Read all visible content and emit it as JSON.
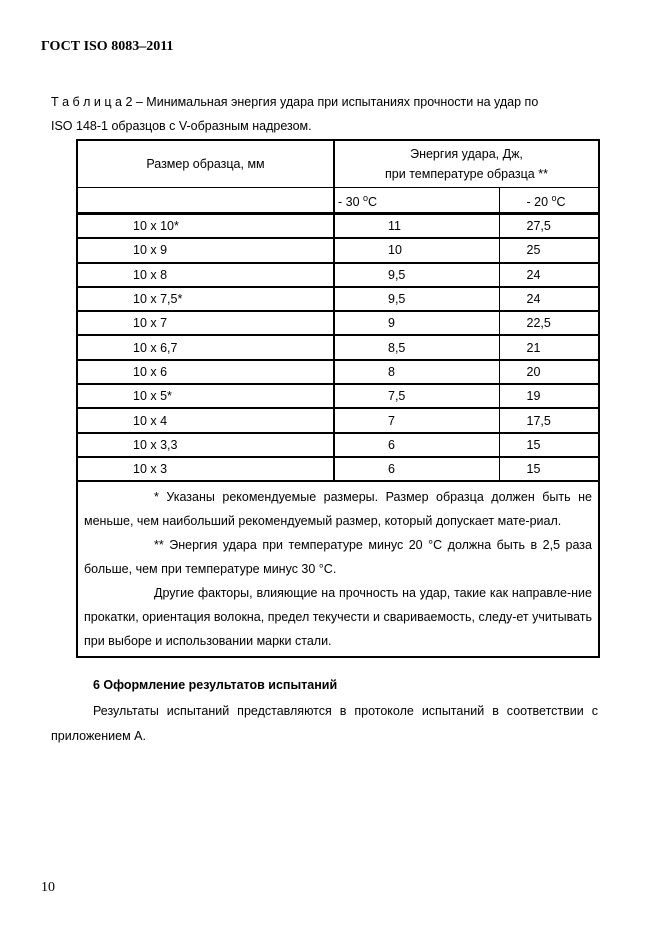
{
  "header": {
    "standard": "ГОСТ ISO 8083–2011"
  },
  "table": {
    "caption_line1": "Т а б л и ц а  2 – Минимальная энергия удара при испытаниях прочности на удар по",
    "caption_line2": "ISO 148-1 образцов с V-образным надрезом.",
    "col_size": "Размер образца, мм",
    "col_energy_line1": "Энергия удара, Дж,",
    "col_energy_line2": "при температуре образца **",
    "temp1": "- 30",
    "temp2": "- 20",
    "deg": "o",
    "unit": "C",
    "rows": [
      [
        "10 x 10*",
        "11",
        "27,5"
      ],
      [
        "10 x 9",
        "10",
        "25"
      ],
      [
        "10 x 8",
        "9,5",
        "24"
      ],
      [
        "10 x 7,5*",
        "9,5",
        "24"
      ],
      [
        "10 x 7",
        "9",
        "22,5"
      ],
      [
        "10 x 6,7",
        "8,5",
        "21"
      ],
      [
        "10 x 6",
        "8",
        "20"
      ],
      [
        "10 x 5*",
        "7,5",
        "19"
      ],
      [
        "10 x 4",
        "7",
        "17,5"
      ],
      [
        "10 x 3,3",
        "6",
        "15"
      ],
      [
        "10 x 3",
        "6",
        "15"
      ]
    ],
    "note1": "*  Указаны рекомендуемые размеры. Размер образца должен быть не меньше, чем наибольший  рекомендуемый размер, который допускает мате-риал.",
    "note2": "** Энергия удара при температуре   минус 20 °С должна быть в 2,5 раза больше, чем при температуре  минус 30 °С.",
    "note3": "Другие факторы, влияющие на прочность на удар,  такие как направле-ние прокатки, ориентация волокна, предел текучести и свариваемость,  следу-ет учитывать при выборе и использовании марки стали."
  },
  "section": {
    "title": "6  Оформление результатов испытаний",
    "text": "Результаты испытаний представляются в протоколе испытаний в соответствии с приложением  А."
  },
  "page_number": "10"
}
